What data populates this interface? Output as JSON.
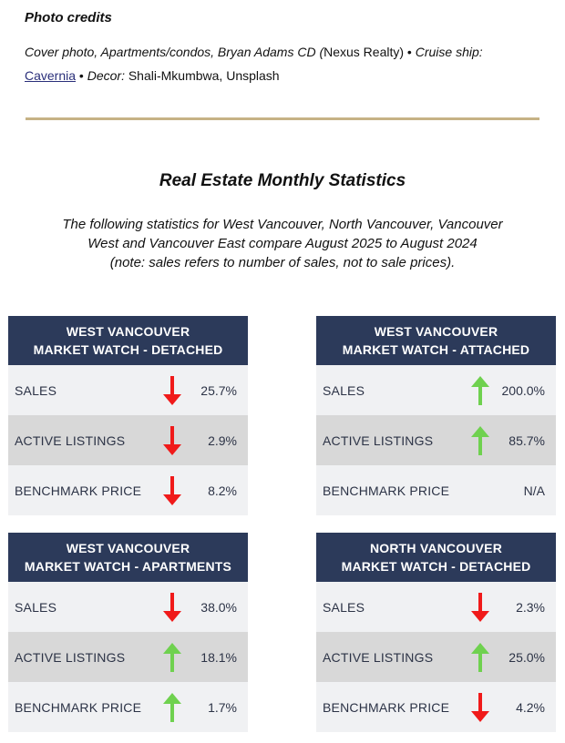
{
  "credits": {
    "title": "Photo credits",
    "line_part1": "Cover photo, Apartments/condos, Bryan Adams CD (",
    "line_part2": "Nexus Realty",
    "line_part3": ") • ",
    "line_part4": "Cruise ship: ",
    "link": "Cavernia",
    "line_part5": " • ",
    "line_part6": "Decor: ",
    "line_part7": "Shali-Mkumbwa, Unsplash"
  },
  "stats": {
    "title": "Real Estate Monthly Statistics",
    "intro_line1": "The following statistics for West Vancouver, North Vancouver, Vancouver",
    "intro_line2": "West and Vancouver East compare August 2025 to August 2024",
    "intro_line3": "(note: sales refers to number of sales, not to sale prices)."
  },
  "colors": {
    "header_bg": "#2c3a5a",
    "divider": "#c6b285",
    "arrow_up": "#6fd14f",
    "arrow_down": "#f01a1a"
  },
  "cards": [
    {
      "head1": "WEST VANCOUVER",
      "head2": "MARKET WATCH - DETACHED",
      "rows": [
        {
          "label": "SALES",
          "value": "25.7%",
          "direction": "down"
        },
        {
          "label": "ACTIVE LISTINGS",
          "value": "2.9%",
          "direction": "down"
        },
        {
          "label": "BENCHMARK PRICE",
          "value": "8.2%",
          "direction": "down"
        }
      ]
    },
    {
      "head1": "WEST VANCOUVER",
      "head2": "MARKET WATCH - ATTACHED",
      "rows": [
        {
          "label": "SALES",
          "value": "200.0%",
          "direction": "up"
        },
        {
          "label": "ACTIVE LISTINGS",
          "value": "85.7%",
          "direction": "up"
        },
        {
          "label": "BENCHMARK PRICE",
          "value": "N/A",
          "direction": "none"
        }
      ]
    },
    {
      "head1": "WEST VANCOUVER",
      "head2": "MARKET WATCH - APARTMENTS",
      "rows": [
        {
          "label": "SALES",
          "value": "38.0%",
          "direction": "down"
        },
        {
          "label": "ACTIVE LISTINGS",
          "value": "18.1%",
          "direction": "up"
        },
        {
          "label": "BENCHMARK PRICE",
          "value": "1.7%",
          "direction": "up"
        }
      ]
    },
    {
      "head1": "NORTH VANCOUVER",
      "head2": "MARKET WATCH - DETACHED",
      "rows": [
        {
          "label": "SALES",
          "value": "2.3%",
          "direction": "down"
        },
        {
          "label": "ACTIVE LISTINGS",
          "value": "25.0%",
          "direction": "up"
        },
        {
          "label": "BENCHMARK PRICE",
          "value": "4.2%",
          "direction": "down"
        }
      ]
    }
  ]
}
